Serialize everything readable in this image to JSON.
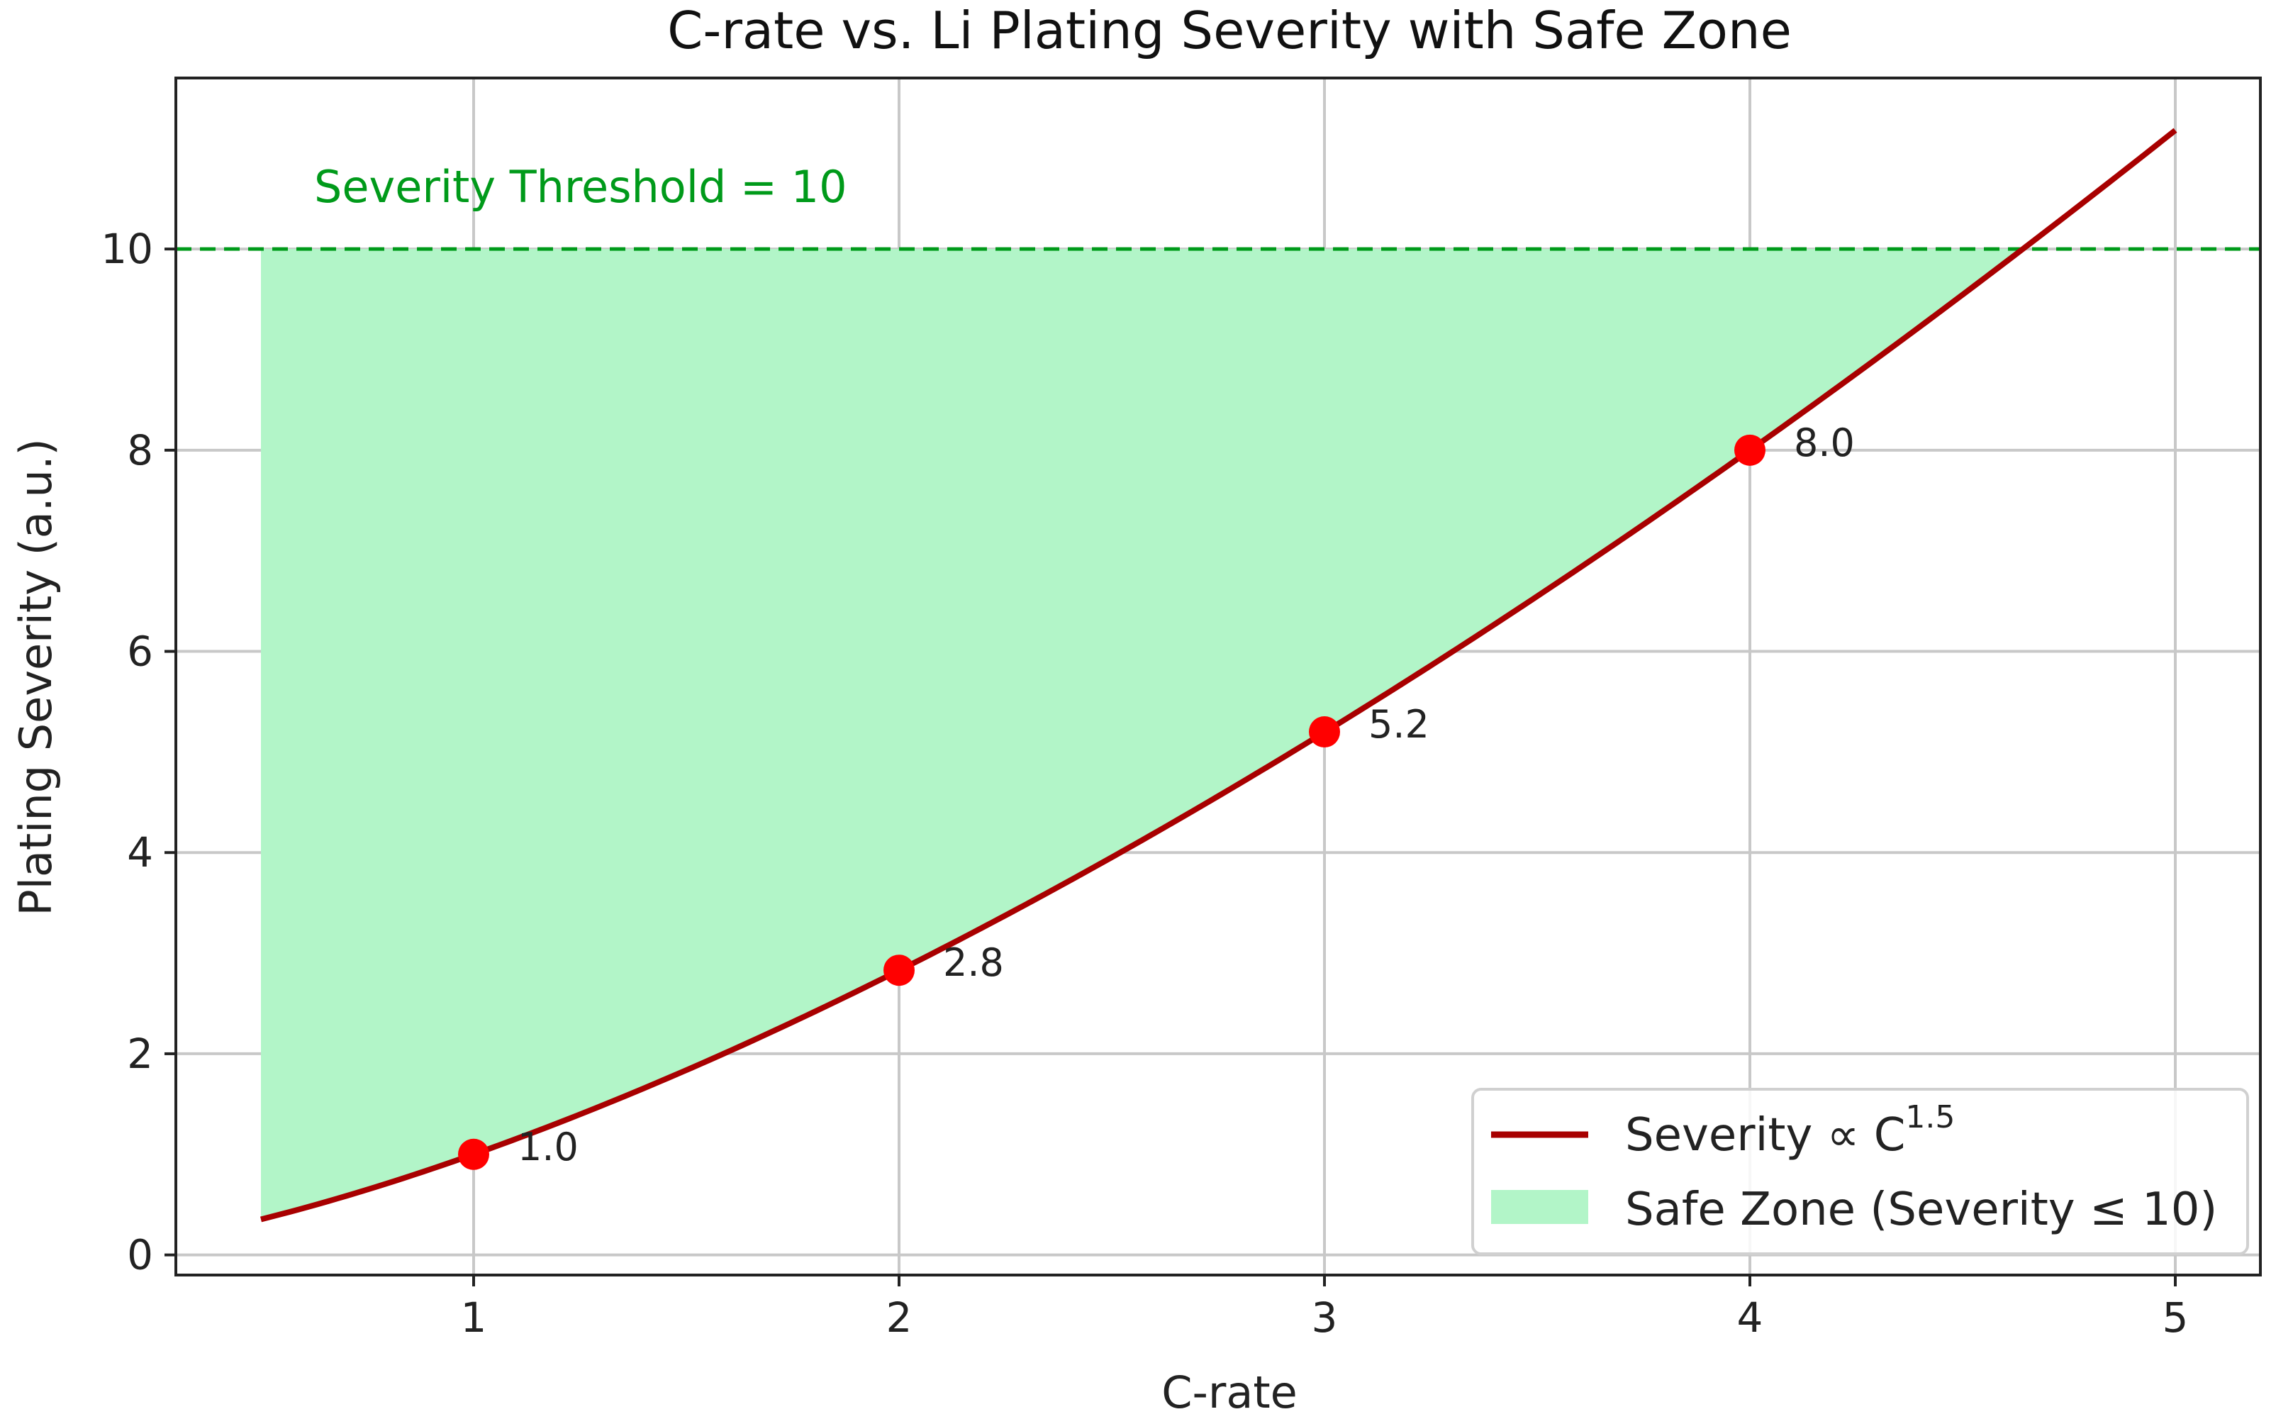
{
  "chart_data": {
    "type": "line",
    "title": "C-rate vs. Li Plating Severity with Safe Zone",
    "xlabel": "C-rate",
    "ylabel": "Plating Severity (a.u.)",
    "xlim": [
      0.3,
      5.2
    ],
    "ylim": [
      -0.2,
      11.7
    ],
    "x_ticks": [
      "1",
      "2",
      "3",
      "4",
      "5"
    ],
    "y_ticks": [
      "0",
      "2",
      "4",
      "6",
      "8",
      "10"
    ],
    "grid": true,
    "curve": {
      "name": "Severity",
      "legend_label": "Severity  ∝ C",
      "legend_exponent": "1.5",
      "x_start": 0.5,
      "x_end": 5.0,
      "exponent": 1.5,
      "color": "#a80000"
    },
    "points": [
      {
        "x": 1,
        "y": 1.0,
        "label": "1.0"
      },
      {
        "x": 2,
        "y": 2.83,
        "label": "2.8"
      },
      {
        "x": 3,
        "y": 5.2,
        "label": "5.2"
      },
      {
        "x": 4,
        "y": 8.0,
        "label": "8.0"
      }
    ],
    "point_color": "#ff0000",
    "threshold": {
      "y": 10,
      "label": "Severity Threshold = 10",
      "color": "#009a1a"
    },
    "safe_zone": {
      "legend_label": "Safe Zone (Severity ≤ 10)",
      "color": "#b2f5c8"
    },
    "legend_position": "lower-right"
  }
}
